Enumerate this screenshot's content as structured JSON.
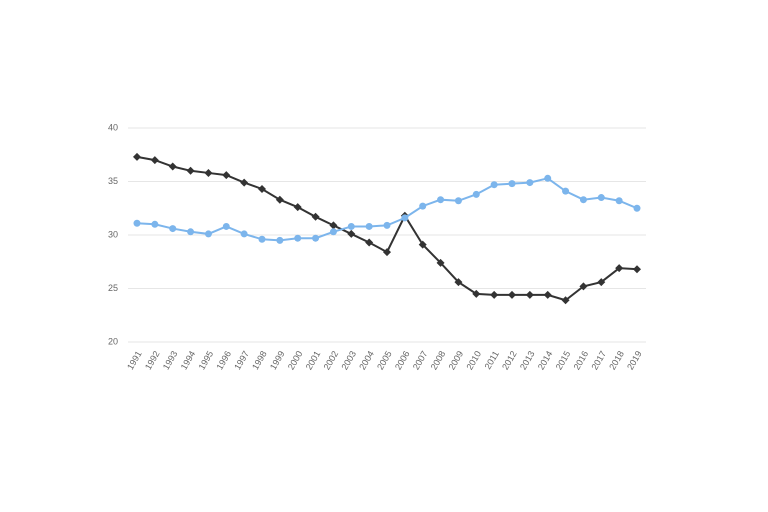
{
  "chart_data": {
    "type": "line",
    "categories": [
      "1991",
      "1992",
      "1993",
      "1994",
      "1995",
      "1996",
      "1997",
      "1998",
      "1999",
      "2000",
      "2001",
      "2002",
      "2003",
      "2004",
      "2005",
      "2006",
      "2007",
      "2008",
      "2009",
      "2010",
      "2011",
      "2012",
      "2013",
      "2014",
      "2015",
      "2016",
      "2017",
      "2018",
      "2019"
    ],
    "series": [
      {
        "color": "#333333",
        "marker": "diamond",
        "values": [
          37.3,
          37.0,
          36.4,
          36.0,
          35.8,
          35.6,
          34.9,
          34.3,
          33.3,
          32.6,
          31.7,
          30.9,
          30.1,
          29.3,
          28.4,
          31.8,
          29.1,
          27.4,
          25.6,
          24.5,
          24.4,
          24.4,
          24.4,
          24.4,
          23.9,
          25.2,
          25.6,
          26.9,
          26.8
        ]
      },
      {
        "color": "#7cb5ec",
        "marker": "circle",
        "values": [
          31.1,
          31.0,
          30.6,
          30.3,
          30.1,
          30.8,
          30.1,
          29.6,
          29.5,
          29.7,
          29.7,
          30.3,
          30.8,
          30.8,
          30.9,
          31.6,
          32.7,
          33.3,
          33.2,
          33.8,
          34.7,
          34.8,
          34.9,
          35.3,
          34.1,
          33.3,
          33.5,
          33.2,
          32.5
        ]
      }
    ],
    "ylim": [
      20,
      40
    ],
    "yticks": [
      20,
      25,
      30,
      35,
      40
    ],
    "grid": true
  }
}
